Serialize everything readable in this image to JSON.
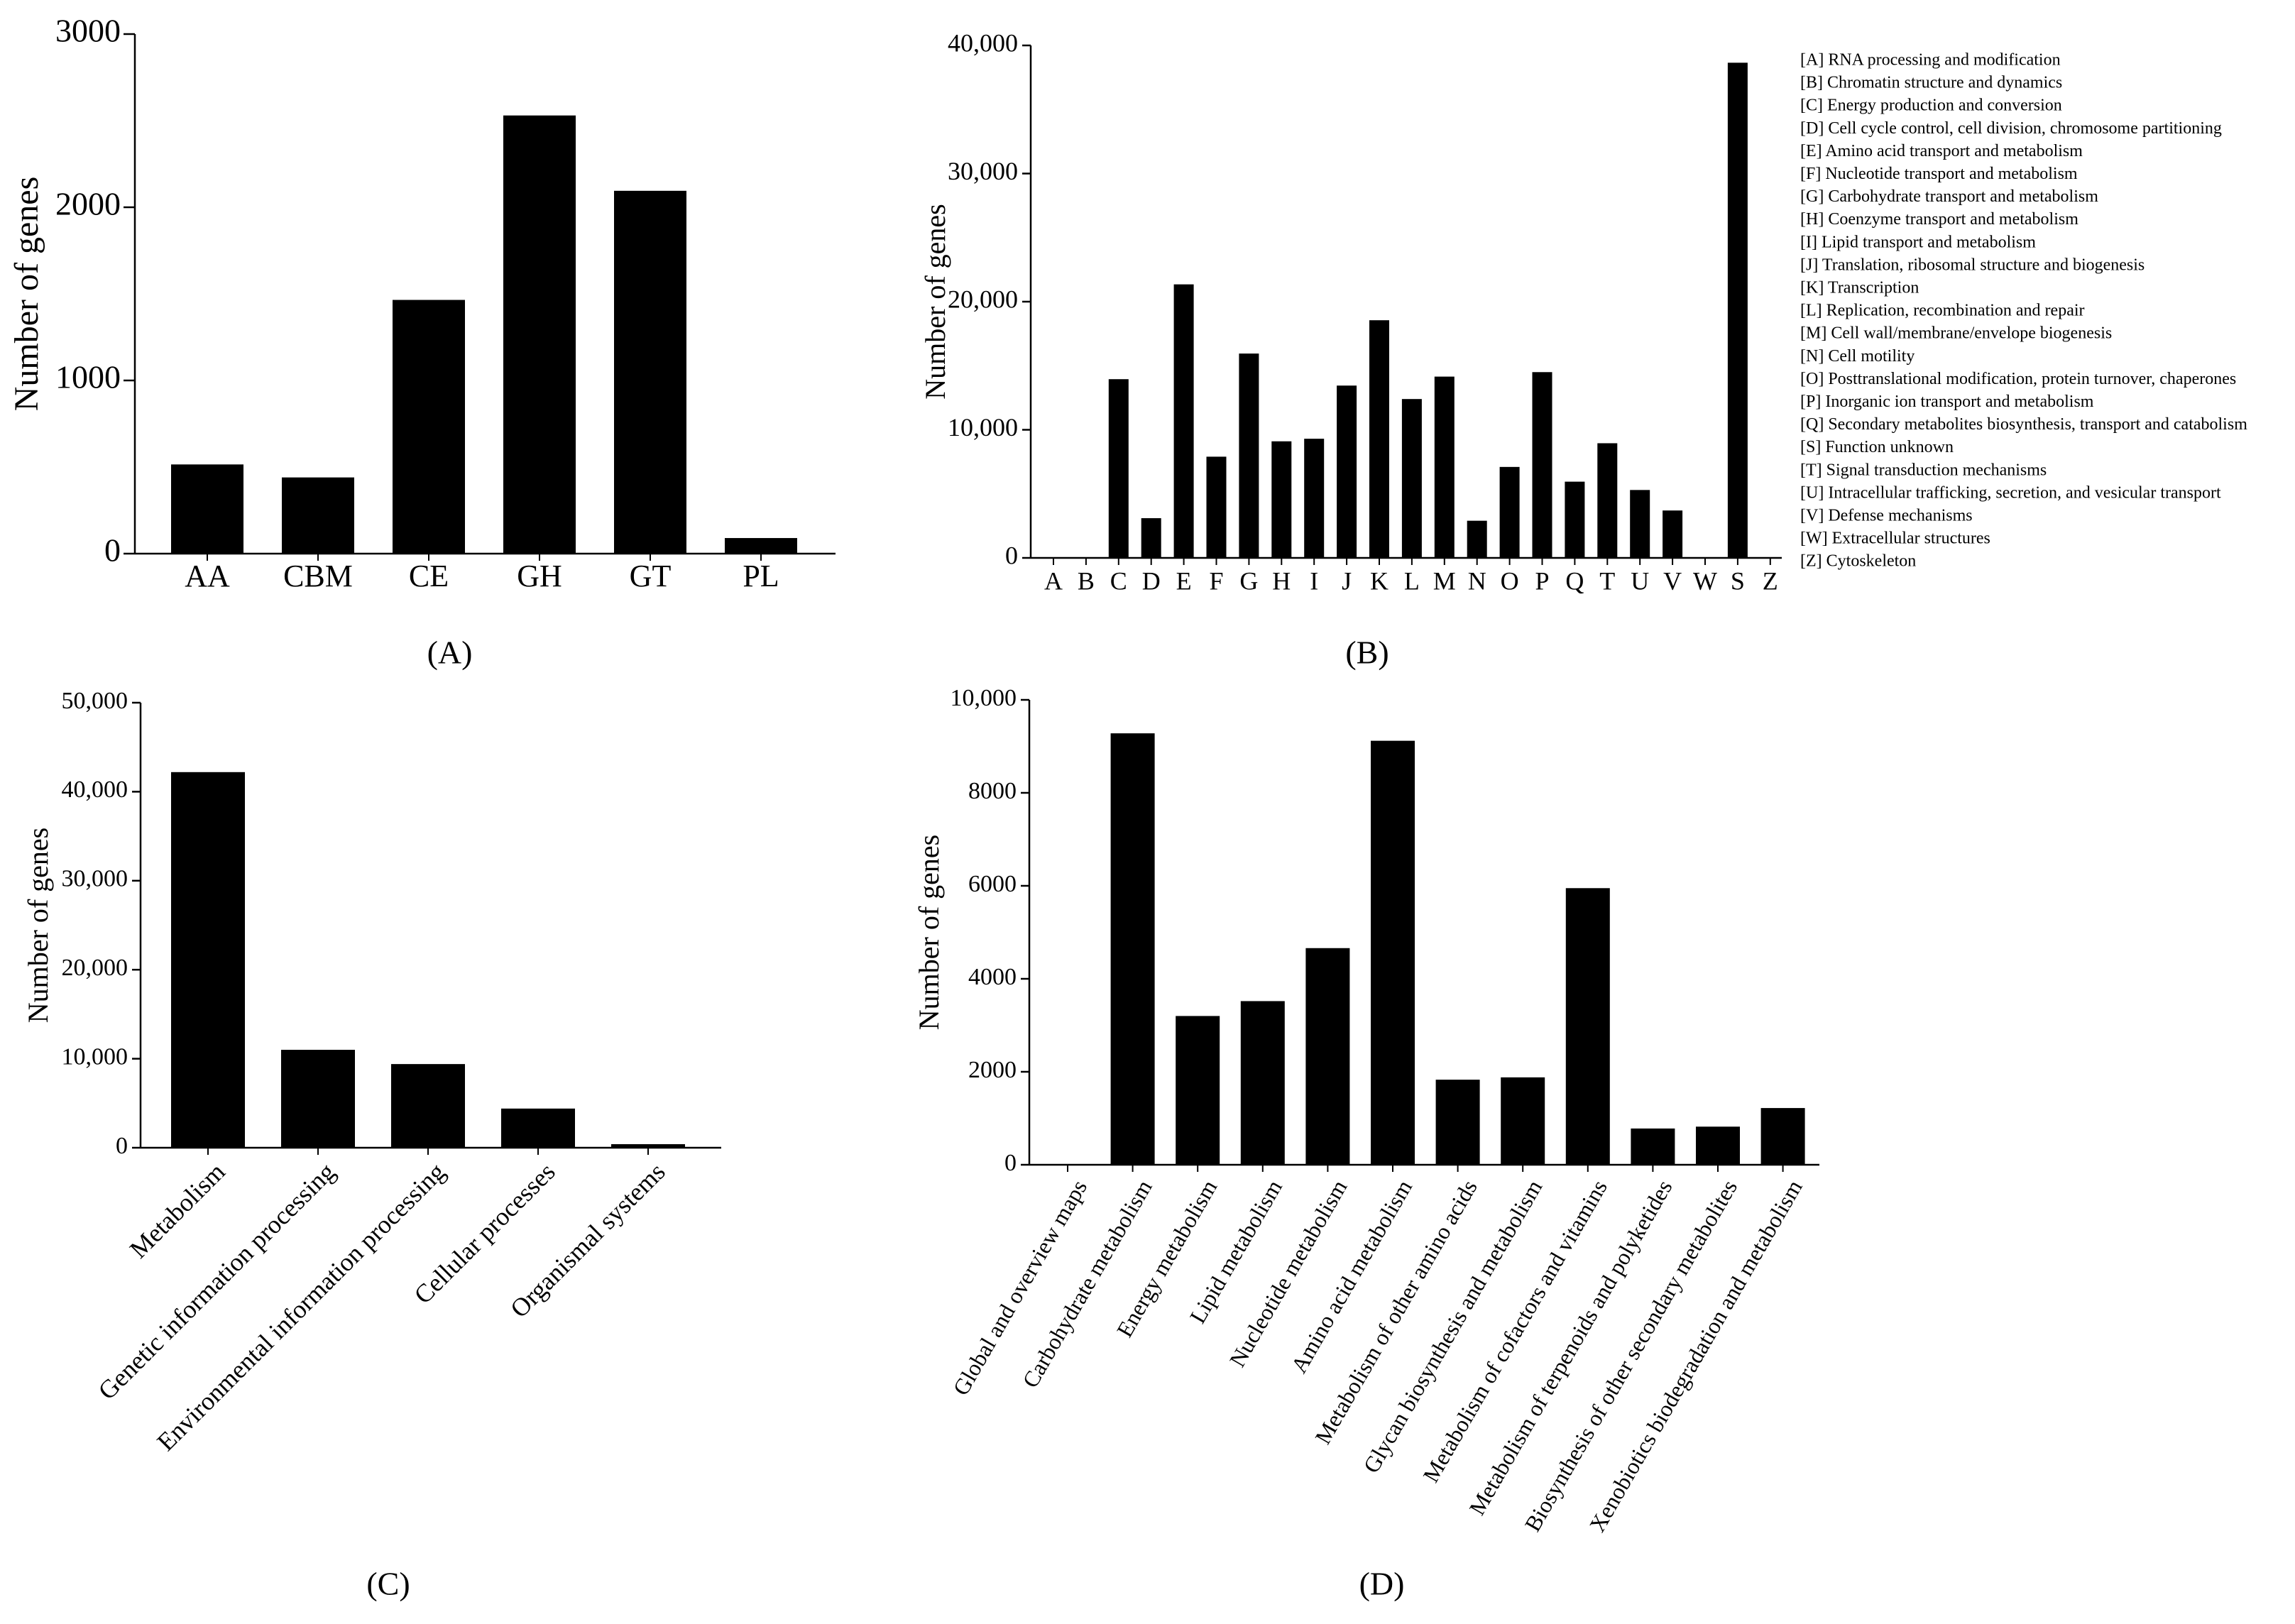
{
  "chart_data": [
    {
      "panel": "(A)",
      "type": "bar",
      "title": "",
      "xlabel": "",
      "ylabel": "Number of genes",
      "categories": [
        "AA",
        "CBM",
        "CE",
        "GH",
        "GT",
        "PL"
      ],
      "values": [
        515,
        440,
        1465,
        2530,
        2095,
        90
      ],
      "ylim": [
        0,
        3000
      ],
      "yticks": [
        0,
        1000,
        2000,
        3000
      ],
      "ytick_labels": [
        "0",
        "1000",
        "2000",
        "3000"
      ],
      "legend": []
    },
    {
      "panel": "(B)",
      "type": "bar",
      "title": "",
      "xlabel": "",
      "ylabel": "Number of genes",
      "categories": [
        "A",
        "B",
        "C",
        "D",
        "E",
        "F",
        "G",
        "H",
        "I",
        "J",
        "K",
        "L",
        "M",
        "N",
        "O",
        "P",
        "Q",
        "T",
        "U",
        "V",
        "W",
        "S",
        "Z"
      ],
      "values": [
        0,
        0,
        13950,
        3100,
        21350,
        7900,
        15950,
        9100,
        9300,
        13450,
        18550,
        12400,
        14150,
        2900,
        7100,
        14500,
        5950,
        8950,
        5300,
        3700,
        0,
        38650,
        0
      ],
      "ylim": [
        0,
        40000
      ],
      "yticks": [
        0,
        10000,
        20000,
        30000,
        40000
      ],
      "ytick_labels": [
        "0",
        "10,000",
        "20,000",
        "30,000",
        "40,000"
      ],
      "legend": [
        "[A] RNA processing and modification",
        "[B] Chromatin structure and dynamics",
        "[C] Energy production and conversion",
        "[D] Cell cycle control, cell division, chromosome partitioning",
        "[E] Amino acid transport and metabolism",
        "[F] Nucleotide transport and metabolism",
        "[G] Carbohydrate transport and metabolism",
        "[H] Coenzyme transport and metabolism",
        "[I] Lipid transport and metabolism",
        "[J] Translation, ribosomal structure and biogenesis",
        "[K] Transcription",
        "[L] Replication, recombination and repair",
        "[M] Cell wall/membrane/envelope biogenesis",
        "[N] Cell motility",
        "[O] Posttranslational modification, protein turnover, chaperones",
        "[P] Inorganic ion transport and metabolism",
        "[Q] Secondary metabolites biosynthesis, transport and catabolism",
        "[S] Function unknown",
        "[T] Signal transduction mechanisms",
        "[U] Intracellular trafficking, secretion, and vesicular transport",
        "[V] Defense mechanisms",
        "[W] Extracellular structures",
        "[Z] Cytoskeleton"
      ]
    },
    {
      "panel": "(C)",
      "type": "bar",
      "title": "",
      "xlabel": "",
      "ylabel": "Number of genes",
      "categories": [
        "Metabolism",
        "Genetic information processing",
        "Environmental information processing",
        "Cellular processes",
        "Organismal systems"
      ],
      "values": [
        42200,
        11000,
        9400,
        4400,
        400
      ],
      "ylim": [
        0,
        50000
      ],
      "yticks": [
        0,
        10000,
        20000,
        30000,
        40000,
        50000
      ],
      "ytick_labels": [
        "0",
        "10,000",
        "20,000",
        "30,000",
        "40,000",
        "50,000"
      ],
      "legend": []
    },
    {
      "panel": "(D)",
      "type": "bar",
      "title": "",
      "xlabel": "",
      "ylabel": "Number of genes",
      "categories": [
        "Global and overview maps",
        "Carbohydrate metabolism",
        "Energy metabolism",
        "Lipid metabolism",
        "Nucleotide metabolism",
        "Amino acid metabolism",
        "Metabolism of other amino acids",
        "Glycan biosynthesis and metabolism",
        "Metabolism of cofactors and vitamins",
        "Metabolism of terpenoids and polyketides",
        "Biosynthesis of other secondary metabolites",
        "Xenobiotics biodegradation and metabolism"
      ],
      "values": [
        0,
        9280,
        3200,
        3520,
        4660,
        9120,
        1830,
        1880,
        5950,
        780,
        820,
        1220
      ],
      "ylim": [
        0,
        10000
      ],
      "yticks": [
        0,
        2000,
        4000,
        6000,
        8000,
        10000
      ],
      "ytick_labels": [
        "0",
        "2000",
        "4000",
        "6000",
        "8000",
        "10,000"
      ],
      "legend": []
    }
  ]
}
